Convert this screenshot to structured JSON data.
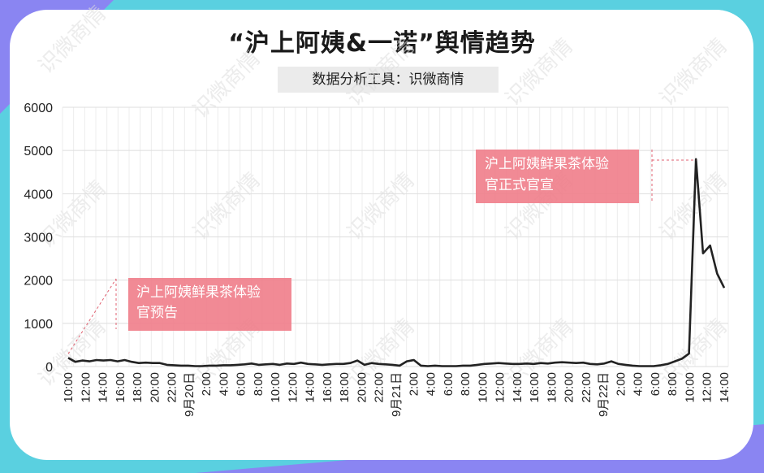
{
  "page": {
    "title": "“沪上阿姨&一诺”舆情趋势",
    "subtitle": "数据分析工具：识微商情",
    "watermark": "识微商情",
    "colors": {
      "background": "#5ad0e0",
      "accent": "#8a85f2",
      "line": "#222222",
      "annotation": "#f07d8a"
    }
  },
  "chart_data": {
    "type": "line",
    "title": "“沪上阿姨&一诺”舆情趋势",
    "xlabel": "",
    "ylabel": "",
    "ylim": [
      0,
      6000
    ],
    "yticks": [
      "0",
      "1000",
      "2000",
      "3000",
      "4000",
      "5000",
      "6000"
    ],
    "grid": true,
    "x_tick_labels": [
      "10:00",
      "12:00",
      "14:00",
      "16:00",
      "18:00",
      "20:00",
      "22:00",
      "9月20日",
      "2:00",
      "4:00",
      "6:00",
      "8:00",
      "10:00",
      "12:00",
      "14:00",
      "16:00",
      "18:00",
      "20:00",
      "22:00",
      "9月21日",
      "2:00",
      "4:00",
      "6:00",
      "8:00",
      "10:00",
      "12:00",
      "14:00",
      "16:00",
      "18:00",
      "20:00",
      "22:00",
      "9月22日",
      "2:00",
      "4:00",
      "6:00",
      "8:00",
      "10:00",
      "12:00",
      "14:00"
    ],
    "series": [
      {
        "values": [
          200,
          110,
          140,
          120,
          150,
          140,
          150,
          120,
          150,
          110,
          80,
          90,
          80,
          80,
          40,
          30,
          20,
          20,
          10,
          10,
          20,
          20,
          30,
          30,
          40,
          50,
          70,
          40,
          50,
          60,
          40,
          70,
          60,
          90,
          60,
          50,
          40,
          50,
          60,
          60,
          80,
          140,
          40,
          80,
          60,
          50,
          40,
          20,
          120,
          150,
          20,
          10,
          20,
          10,
          10,
          10,
          20,
          20,
          40,
          60,
          70,
          80,
          70,
          60,
          60,
          70,
          60,
          80,
          70,
          90,
          100,
          90,
          80,
          90,
          60,
          50,
          70,
          120,
          60,
          40,
          20,
          10,
          10,
          10,
          30,
          60,
          120,
          180,
          300,
          4800,
          2620,
          2800,
          2150,
          1820
        ]
      }
    ],
    "annotations": [
      {
        "text_line1": "沪上阿姨鲜果茶体验",
        "text_line2": "官预告"
      },
      {
        "text_line1": "沪上阿姨鲜果茶体验",
        "text_line2": "官正式官宣"
      }
    ]
  }
}
